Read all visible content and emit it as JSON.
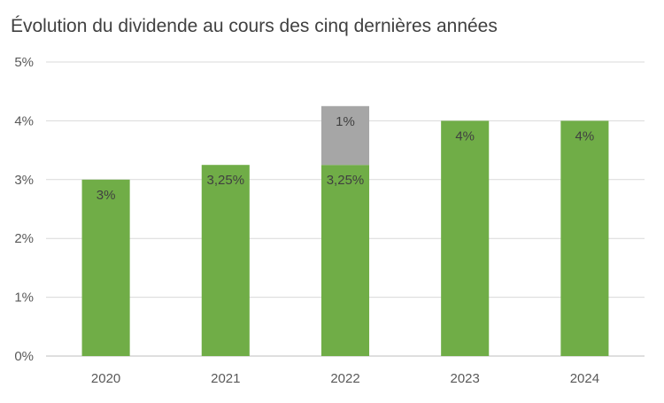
{
  "chart_data": {
    "type": "bar",
    "stacked": true,
    "title": "Évolution du dividende au cours des cinq dernières années",
    "xlabel": "",
    "ylabel": "",
    "categories": [
      "2020",
      "2021",
      "2022",
      "2023",
      "2024"
    ],
    "ylim": [
      0,
      5
    ],
    "yticks": [
      {
        "value": 0,
        "label": "0%"
      },
      {
        "value": 1,
        "label": "1%"
      },
      {
        "value": 2,
        "label": "2%"
      },
      {
        "value": 3,
        "label": "3%"
      },
      {
        "value": 4,
        "label": "4%"
      },
      {
        "value": 5,
        "label": "5%"
      }
    ],
    "grid": true,
    "legend": "none",
    "series": [
      {
        "color": "#70ad47",
        "values": [
          3,
          3.25,
          3.25,
          4,
          4
        ],
        "labels": [
          "3%",
          "3,25%",
          "3,25%",
          "4%",
          "4%"
        ]
      },
      {
        "color": "#a6a6a6",
        "values": [
          0,
          0,
          1,
          0,
          0
        ],
        "labels": [
          "",
          "",
          "1%",
          "",
          ""
        ]
      }
    ]
  }
}
